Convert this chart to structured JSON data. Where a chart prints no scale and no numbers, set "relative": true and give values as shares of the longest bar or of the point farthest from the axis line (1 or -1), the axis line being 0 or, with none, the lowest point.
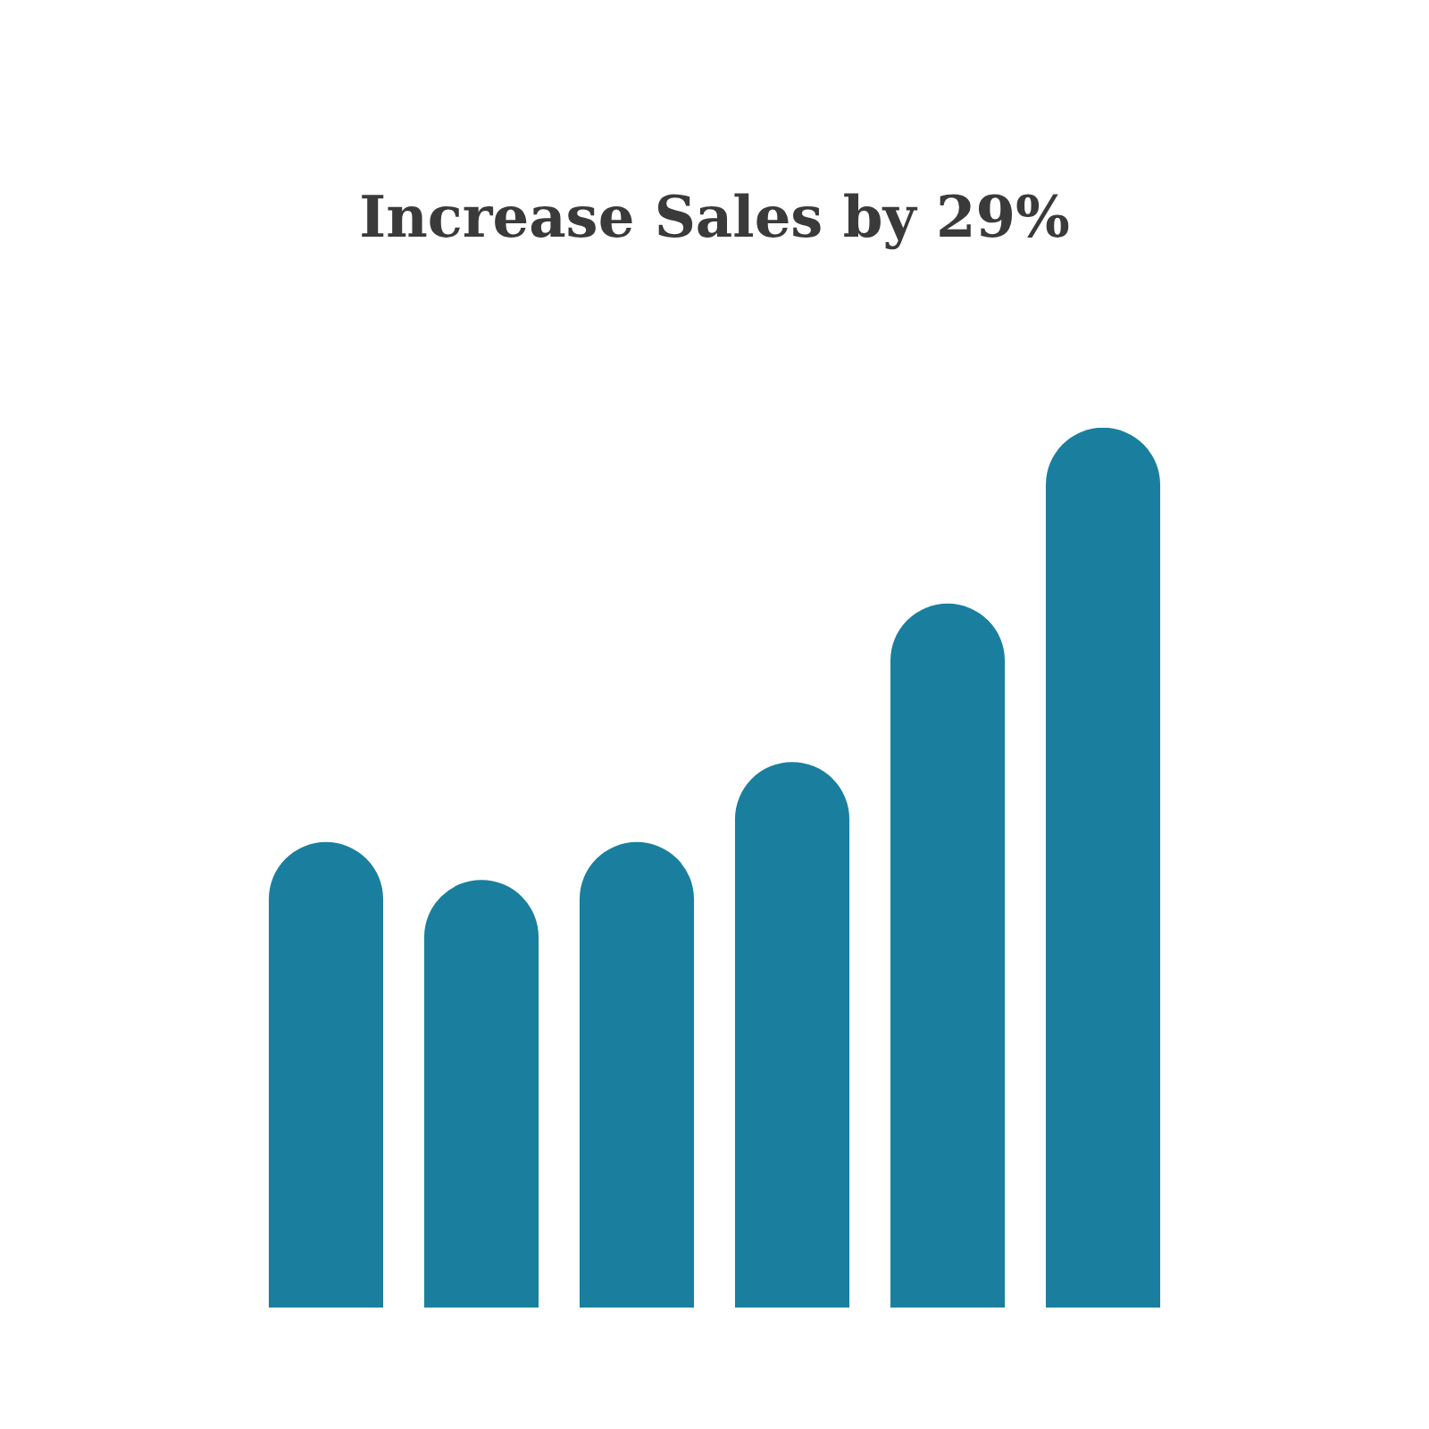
{
  "chart_data": {
    "type": "bar",
    "title": "Increase Sales by 29%",
    "categories": [
      null,
      null,
      null,
      null,
      null,
      null
    ],
    "values": [
      0.529,
      0.486,
      0.529,
      0.62,
      0.8,
      1
    ],
    "color": "#1a7f9e",
    "relative": true,
    "grid": false,
    "legend": false,
    "tick_labels": false
  }
}
